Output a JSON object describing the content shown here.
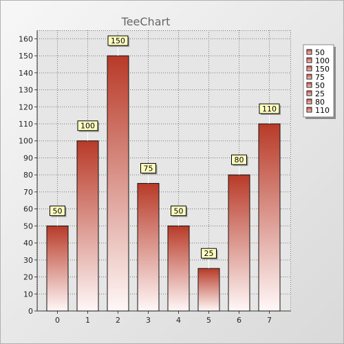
{
  "chart_data": {
    "type": "bar",
    "title": "TeeChart",
    "categories": [
      "0",
      "1",
      "2",
      "3",
      "4",
      "5",
      "6",
      "7"
    ],
    "values": [
      50,
      100,
      150,
      75,
      50,
      25,
      80,
      110
    ],
    "data_labels": [
      "50",
      "100",
      "150",
      "75",
      "50",
      "25",
      "80",
      "110"
    ],
    "ylim": [
      0,
      165
    ],
    "yticks": [
      0,
      10,
      20,
      30,
      40,
      50,
      60,
      70,
      80,
      90,
      100,
      110,
      120,
      130,
      140,
      150,
      160
    ],
    "xlabel": "",
    "ylabel": "",
    "grid": true,
    "legend": {
      "placement": "right",
      "entries": [
        "50",
        "100",
        "150",
        "75",
        "50",
        "25",
        "80",
        "110"
      ]
    },
    "colors": {
      "bar_top": "#b83a28",
      "bar_bottom": "#fff8f8",
      "bar_stroke": "#111111",
      "label_fill": "#ffffc0",
      "plot_bg": "#e6e6e6",
      "page_bg": "#efefef",
      "grid": "#777777",
      "title": "#666666"
    }
  }
}
